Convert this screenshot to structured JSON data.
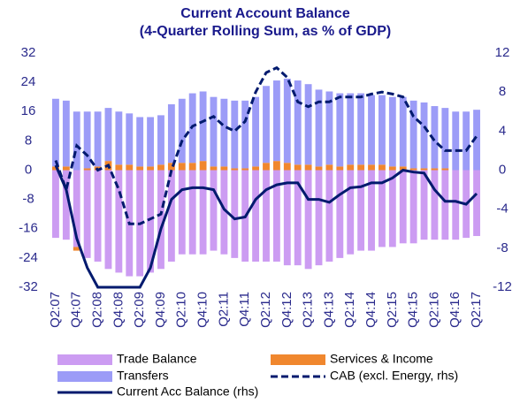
{
  "chart_data": {
    "type": "bar",
    "title": "Current Account Balance",
    "subtitle": "(4-Quarter Rolling Sum, as % of GDP)",
    "categories": [
      "Q2:07",
      null,
      "Q4:07",
      null,
      "Q2:08",
      null,
      "Q4:08",
      null,
      "Q2:09",
      null,
      "Q4:09",
      null,
      "Q2:10",
      null,
      "Q4:10",
      null,
      "Q2:11",
      null,
      "Q4:11",
      null,
      "Q2:12",
      null,
      "Q4:12",
      null,
      "Q2:13",
      null,
      "Q4:13",
      null,
      "Q2:14",
      null,
      "Q4:14",
      null,
      "Q2:15",
      null,
      "Q4:15",
      null,
      "Q2:16",
      null,
      "Q4:16",
      null,
      "Q2:17"
    ],
    "series": [
      {
        "name": "Trade Balance",
        "color": "#cc9cf2",
        "values": [
          -18.5,
          -19,
          -21,
          -24,
          -25,
          -27,
          -28,
          -29,
          -29,
          -28,
          -27,
          -25,
          -23,
          -23,
          -23,
          -22,
          -23,
          -24,
          -25,
          -25,
          -25,
          -25,
          -26,
          -26,
          -27,
          -26,
          -25,
          -24,
          -23,
          -22,
          -22,
          -21,
          -21,
          -20,
          -20,
          -19,
          -19,
          -19,
          -19,
          -18.5,
          -18
        ]
      },
      {
        "name": "Services & Income",
        "color": "#f0872e",
        "values": [
          1,
          1,
          -1,
          0.5,
          1,
          2.5,
          1.5,
          1.5,
          1,
          1,
          1.5,
          2,
          2,
          2,
          2.5,
          1,
          1,
          0.5,
          0.5,
          1,
          2,
          2.5,
          2,
          1.5,
          1.5,
          1,
          1.5,
          1,
          1.5,
          1.5,
          1.5,
          1.5,
          1,
          1,
          0.5,
          0.5,
          0.5,
          0.5,
          0,
          0,
          0
        ]
      },
      {
        "name": "Transfers",
        "color": "#9c9cf7",
        "values": [
          18.5,
          18,
          16,
          15.5,
          15,
          14.5,
          14.5,
          14,
          13.5,
          13.5,
          13.5,
          16,
          17.5,
          19,
          19,
          19,
          18.5,
          18.5,
          18.5,
          19,
          21,
          22,
          23,
          23,
          22,
          21,
          20,
          20,
          19.5,
          19.5,
          19,
          19,
          19,
          19,
          18.5,
          18,
          17,
          16.5,
          16,
          16,
          16.5
        ]
      },
      {
        "name": "CAB (excl. Energy, rhs)",
        "color": "#001a6e",
        "type": "line",
        "dash": true,
        "axis": "y2",
        "values": [
          1,
          -2,
          2.5,
          1.5,
          0,
          0.5,
          -2,
          -5.5,
          -5.5,
          -5,
          -4.5,
          0,
          3,
          4.5,
          5,
          5.5,
          4.5,
          4,
          5,
          8,
          10,
          10.5,
          9.5,
          7,
          6.5,
          7,
          7,
          7.5,
          7.5,
          7.5,
          7.8,
          8,
          7.8,
          7.5,
          5.5,
          4.5,
          3,
          2,
          2,
          2,
          3.5
        ]
      },
      {
        "name": "Current Acc Balance (rhs)",
        "color": "#001a6e",
        "type": "line",
        "axis": "y2",
        "values": [
          0.5,
          -2,
          -7,
          -10,
          -12,
          -12,
          -12,
          -12,
          -12,
          -10,
          -6,
          -3,
          -2,
          -1.8,
          -1.8,
          -2,
          -4,
          -5,
          -4.8,
          -3,
          -2,
          -1.5,
          -1.3,
          -1.3,
          -3,
          -3,
          -3.3,
          -2.5,
          -1.8,
          -1.7,
          -1.3,
          -1.3,
          -0.8,
          0,
          -0.2,
          -0.3,
          -2,
          -3.2,
          -3.2,
          -3.5,
          -2.4
        ]
      }
    ],
    "ylim": [
      -32,
      32
    ],
    "yticks": [
      32,
      24,
      16,
      8,
      0,
      -8,
      -16,
      -24,
      -32
    ],
    "y2lim": [
      -12,
      12
    ],
    "y2ticks": [
      12,
      8,
      4,
      0,
      -4,
      -8,
      -12
    ],
    "stacked": true,
    "grid": false
  }
}
